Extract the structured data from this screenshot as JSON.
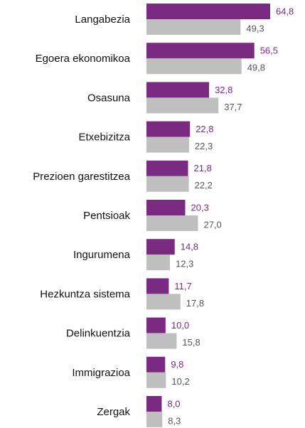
{
  "chart_data": {
    "type": "bar",
    "orientation": "horizontal",
    "categories": [
      "Langabezia",
      "Egoera ekonomikoa",
      "Osasuna",
      "Etxebizitza",
      "Prezioen garestitzea",
      "Pentsioak",
      "Ingurumena",
      "Hezkuntza sistema",
      "Delinkuentzia",
      "Immigrazioa",
      "Zergak"
    ],
    "series": [
      {
        "color": "#7b2a82",
        "values": [
          64.8,
          56.5,
          32.8,
          22.8,
          21.8,
          20.3,
          14.8,
          11.7,
          10.0,
          9.8,
          8.0
        ],
        "value_labels": [
          "64,8",
          "56,5",
          "32,8",
          "22,8",
          "21,8",
          "20,3",
          "14,8",
          "11,7",
          "10,0",
          "9,8",
          "8,0"
        ]
      },
      {
        "color": "#bfbfbf",
        "values": [
          49.3,
          49.8,
          37.7,
          22.3,
          22.2,
          27.0,
          12.3,
          17.8,
          15.8,
          10.2,
          8.3
        ],
        "value_labels": [
          "49,3",
          "49,8",
          "37,7",
          "22,3",
          "22,2",
          "27,0",
          "12,3",
          "17,8",
          "15,8",
          "10,2",
          "8,3"
        ]
      }
    ]
  }
}
